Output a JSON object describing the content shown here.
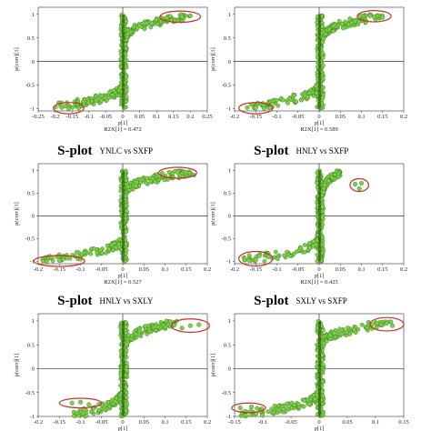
{
  "chart_data": [
    {
      "type": "scatter",
      "title": "",
      "subtitle": "",
      "xlabel": "p[1]",
      "ylabel": "p(corr)[1]",
      "r2_label": "R2X[1] = 0.472",
      "xlim": [
        -0.25,
        0.25
      ],
      "ylim": [
        -1.05,
        1.15
      ],
      "x_ticks": [
        "-0.25",
        "-0.2",
        "-0.15",
        "-0.1",
        "-0.05",
        "0",
        "0.05",
        "0.1",
        "0.15",
        "0.2",
        "0.25"
      ],
      "y_ticks": [
        "-1",
        "-0.5",
        "0",
        "0.5",
        "1"
      ],
      "curve": {
        "left": -0.2,
        "right": 0.2,
        "x_min_core": -0.006,
        "x_max_core": 0.012
      },
      "outliers": {
        "x": [
          0.13,
          0.175,
          0.2,
          -0.18,
          -0.16,
          -0.13
        ],
        "y": [
          0.93,
          0.95,
          0.97,
          -0.98,
          -1.0,
          -0.99
        ]
      },
      "highlight_regions": [
        {
          "cx": 0.17,
          "cy": 0.95,
          "rx": 0.06,
          "ry": 0.12
        },
        {
          "cx": -0.16,
          "cy": -0.99,
          "rx": 0.045,
          "ry": 0.12
        }
      ]
    },
    {
      "type": "scatter",
      "title": "",
      "subtitle": "",
      "xlabel": "p[1]",
      "ylabel": "p(corr)[1]",
      "r2_label": "R2X[1] = 0.589",
      "xlim": [
        -0.2,
        0.2
      ],
      "ylim": [
        -1.05,
        1.15
      ],
      "x_ticks": [
        "-0.2",
        "-0.15",
        "-0.1",
        "-0.05",
        "0",
        "0.05",
        "0.1",
        "0.15",
        "0.2"
      ],
      "y_ticks": [
        "-1",
        "-0.5",
        "0",
        "0.5",
        "1"
      ],
      "curve": {
        "left": -0.17,
        "right": 0.15,
        "x_min_core": -0.005,
        "x_max_core": 0.01
      },
      "outliers": {
        "x": [
          0.12,
          0.13,
          0.15,
          -0.17,
          -0.15,
          -0.13
        ],
        "y": [
          0.97,
          0.95,
          0.93,
          -0.98,
          -0.99,
          -1.0
        ]
      },
      "highlight_regions": [
        {
          "cx": 0.13,
          "cy": 0.96,
          "rx": 0.04,
          "ry": 0.12
        },
        {
          "cx": -0.15,
          "cy": -0.99,
          "rx": 0.04,
          "ry": 0.12
        }
      ]
    },
    {
      "type": "scatter",
      "title": "S-plot",
      "subtitle": "YNLC vs SXFP",
      "xlabel": "p[1]",
      "ylabel": "p(corr)[1]",
      "r2_label": "R2X[1] = 0.527",
      "xlim": [
        -0.2,
        0.2
      ],
      "ylim": [
        -1.05,
        1.15
      ],
      "x_ticks": [
        "-0.2",
        "-0.15",
        "-0.1",
        "-0.05",
        "0",
        "0.05",
        "0.1",
        "0.15",
        "0.2"
      ],
      "y_ticks": [
        "-1",
        "-0.5",
        "0",
        "0.5",
        "1"
      ],
      "curve": {
        "left": -0.19,
        "right": 0.17,
        "x_min_core": -0.005,
        "x_max_core": 0.01
      },
      "outliers": {
        "x": [
          0.11,
          0.13,
          0.15,
          -0.18,
          -0.15,
          -0.1
        ],
        "y": [
          0.96,
          0.97,
          0.95,
          -1.0,
          -0.98,
          -0.95
        ]
      },
      "highlight_regions": [
        {
          "cx": 0.13,
          "cy": 0.95,
          "rx": 0.045,
          "ry": 0.12
        },
        {
          "cx": -0.15,
          "cy": -0.99,
          "rx": 0.06,
          "ry": 0.12
        }
      ]
    },
    {
      "type": "scatter",
      "title": "S-plot",
      "subtitle": "HNLY vs SXFP",
      "xlabel": "p[1]",
      "ylabel": "p(corr)[1]",
      "r2_label": "R2X[1] = 0.425",
      "xlim": [
        -0.2,
        0.2
      ],
      "ylim": [
        -1.05,
        1.15
      ],
      "x_ticks": [
        "-0.2",
        "-0.15",
        "-0.1",
        "-0.05",
        "0",
        "0.05",
        "0.1",
        "0.15",
        "0.2"
      ],
      "y_ticks": [
        "-1",
        "-0.5",
        "0",
        "0.5",
        "1"
      ],
      "curve": {
        "left": -0.18,
        "right": 0.05,
        "x_min_core": -0.005,
        "x_max_core": 0.01
      },
      "outliers": {
        "x": [
          0.085,
          0.095,
          0.1,
          -0.175,
          -0.15,
          -0.12
        ],
        "y": [
          0.7,
          0.6,
          0.72,
          -0.95,
          -0.97,
          -0.9
        ]
      },
      "highlight_regions": [
        {
          "cx": 0.095,
          "cy": 0.68,
          "rx": 0.022,
          "ry": 0.14
        },
        {
          "cx": -0.15,
          "cy": -0.94,
          "rx": 0.04,
          "ry": 0.16
        }
      ]
    },
    {
      "type": "scatter",
      "title": "S-plot",
      "subtitle": "HNLY vs SXLY",
      "xlabel": "p[1]",
      "ylabel": "p(corr)[1]",
      "r2_label": "",
      "xlim": [
        -0.2,
        0.2
      ],
      "ylim": [
        -1.0,
        1.15
      ],
      "x_ticks": [
        "-0.2",
        "-0.15",
        "-0.1",
        "-0.05",
        "0",
        "0.05",
        "0.1",
        "0.15",
        "0.2"
      ],
      "y_ticks": [
        "-1",
        "-0.5",
        "0",
        "0.5",
        "1"
      ],
      "curve": {
        "left": -0.12,
        "right": 0.13,
        "x_min_core": -0.005,
        "x_max_core": 0.01
      },
      "outliers": {
        "x": [
          0.14,
          0.16,
          0.18,
          -0.12,
          -0.1,
          -0.08
        ],
        "y": [
          0.85,
          0.9,
          0.92,
          -0.72,
          -0.7,
          -0.75
        ]
      },
      "highlight_regions": [
        {
          "cx": 0.16,
          "cy": 0.9,
          "rx": 0.045,
          "ry": 0.14
        },
        {
          "cx": -0.1,
          "cy": -0.72,
          "rx": 0.05,
          "ry": 0.1
        }
      ]
    },
    {
      "type": "scatter",
      "title": "S-plot",
      "subtitle": "SXLY vs SXFP",
      "xlabel": "p[1]",
      "ylabel": "p(corr)[1]",
      "r2_label": "",
      "xlim": [
        -0.15,
        0.15
      ],
      "ylim": [
        -1.0,
        1.15
      ],
      "x_ticks": [
        "-0.15",
        "-0.1",
        "-0.05",
        "0",
        "0.05",
        "0.1",
        "0.15"
      ],
      "y_ticks": [
        "-1",
        "-0.5",
        "0",
        "0.5",
        "1"
      ],
      "curve": {
        "left": -0.14,
        "right": 0.13,
        "x_min_core": -0.004,
        "x_max_core": 0.008
      },
      "outliers": {
        "x": [
          0.11,
          0.12,
          0.13,
          -0.14,
          -0.12,
          -0.11
        ],
        "y": [
          0.92,
          0.95,
          0.9,
          -0.82,
          -0.8,
          -0.83
        ]
      },
      "highlight_regions": [
        {
          "cx": 0.12,
          "cy": 0.93,
          "rx": 0.03,
          "ry": 0.14
        },
        {
          "cx": -0.125,
          "cy": -0.82,
          "rx": 0.03,
          "ry": 0.1
        }
      ]
    }
  ],
  "colors": {
    "point_fill": "#7fd04a",
    "point_stroke": "#2f6e12",
    "ellipse": "#c9302c",
    "axis": "#333333",
    "core": "#1e3d0c"
  }
}
